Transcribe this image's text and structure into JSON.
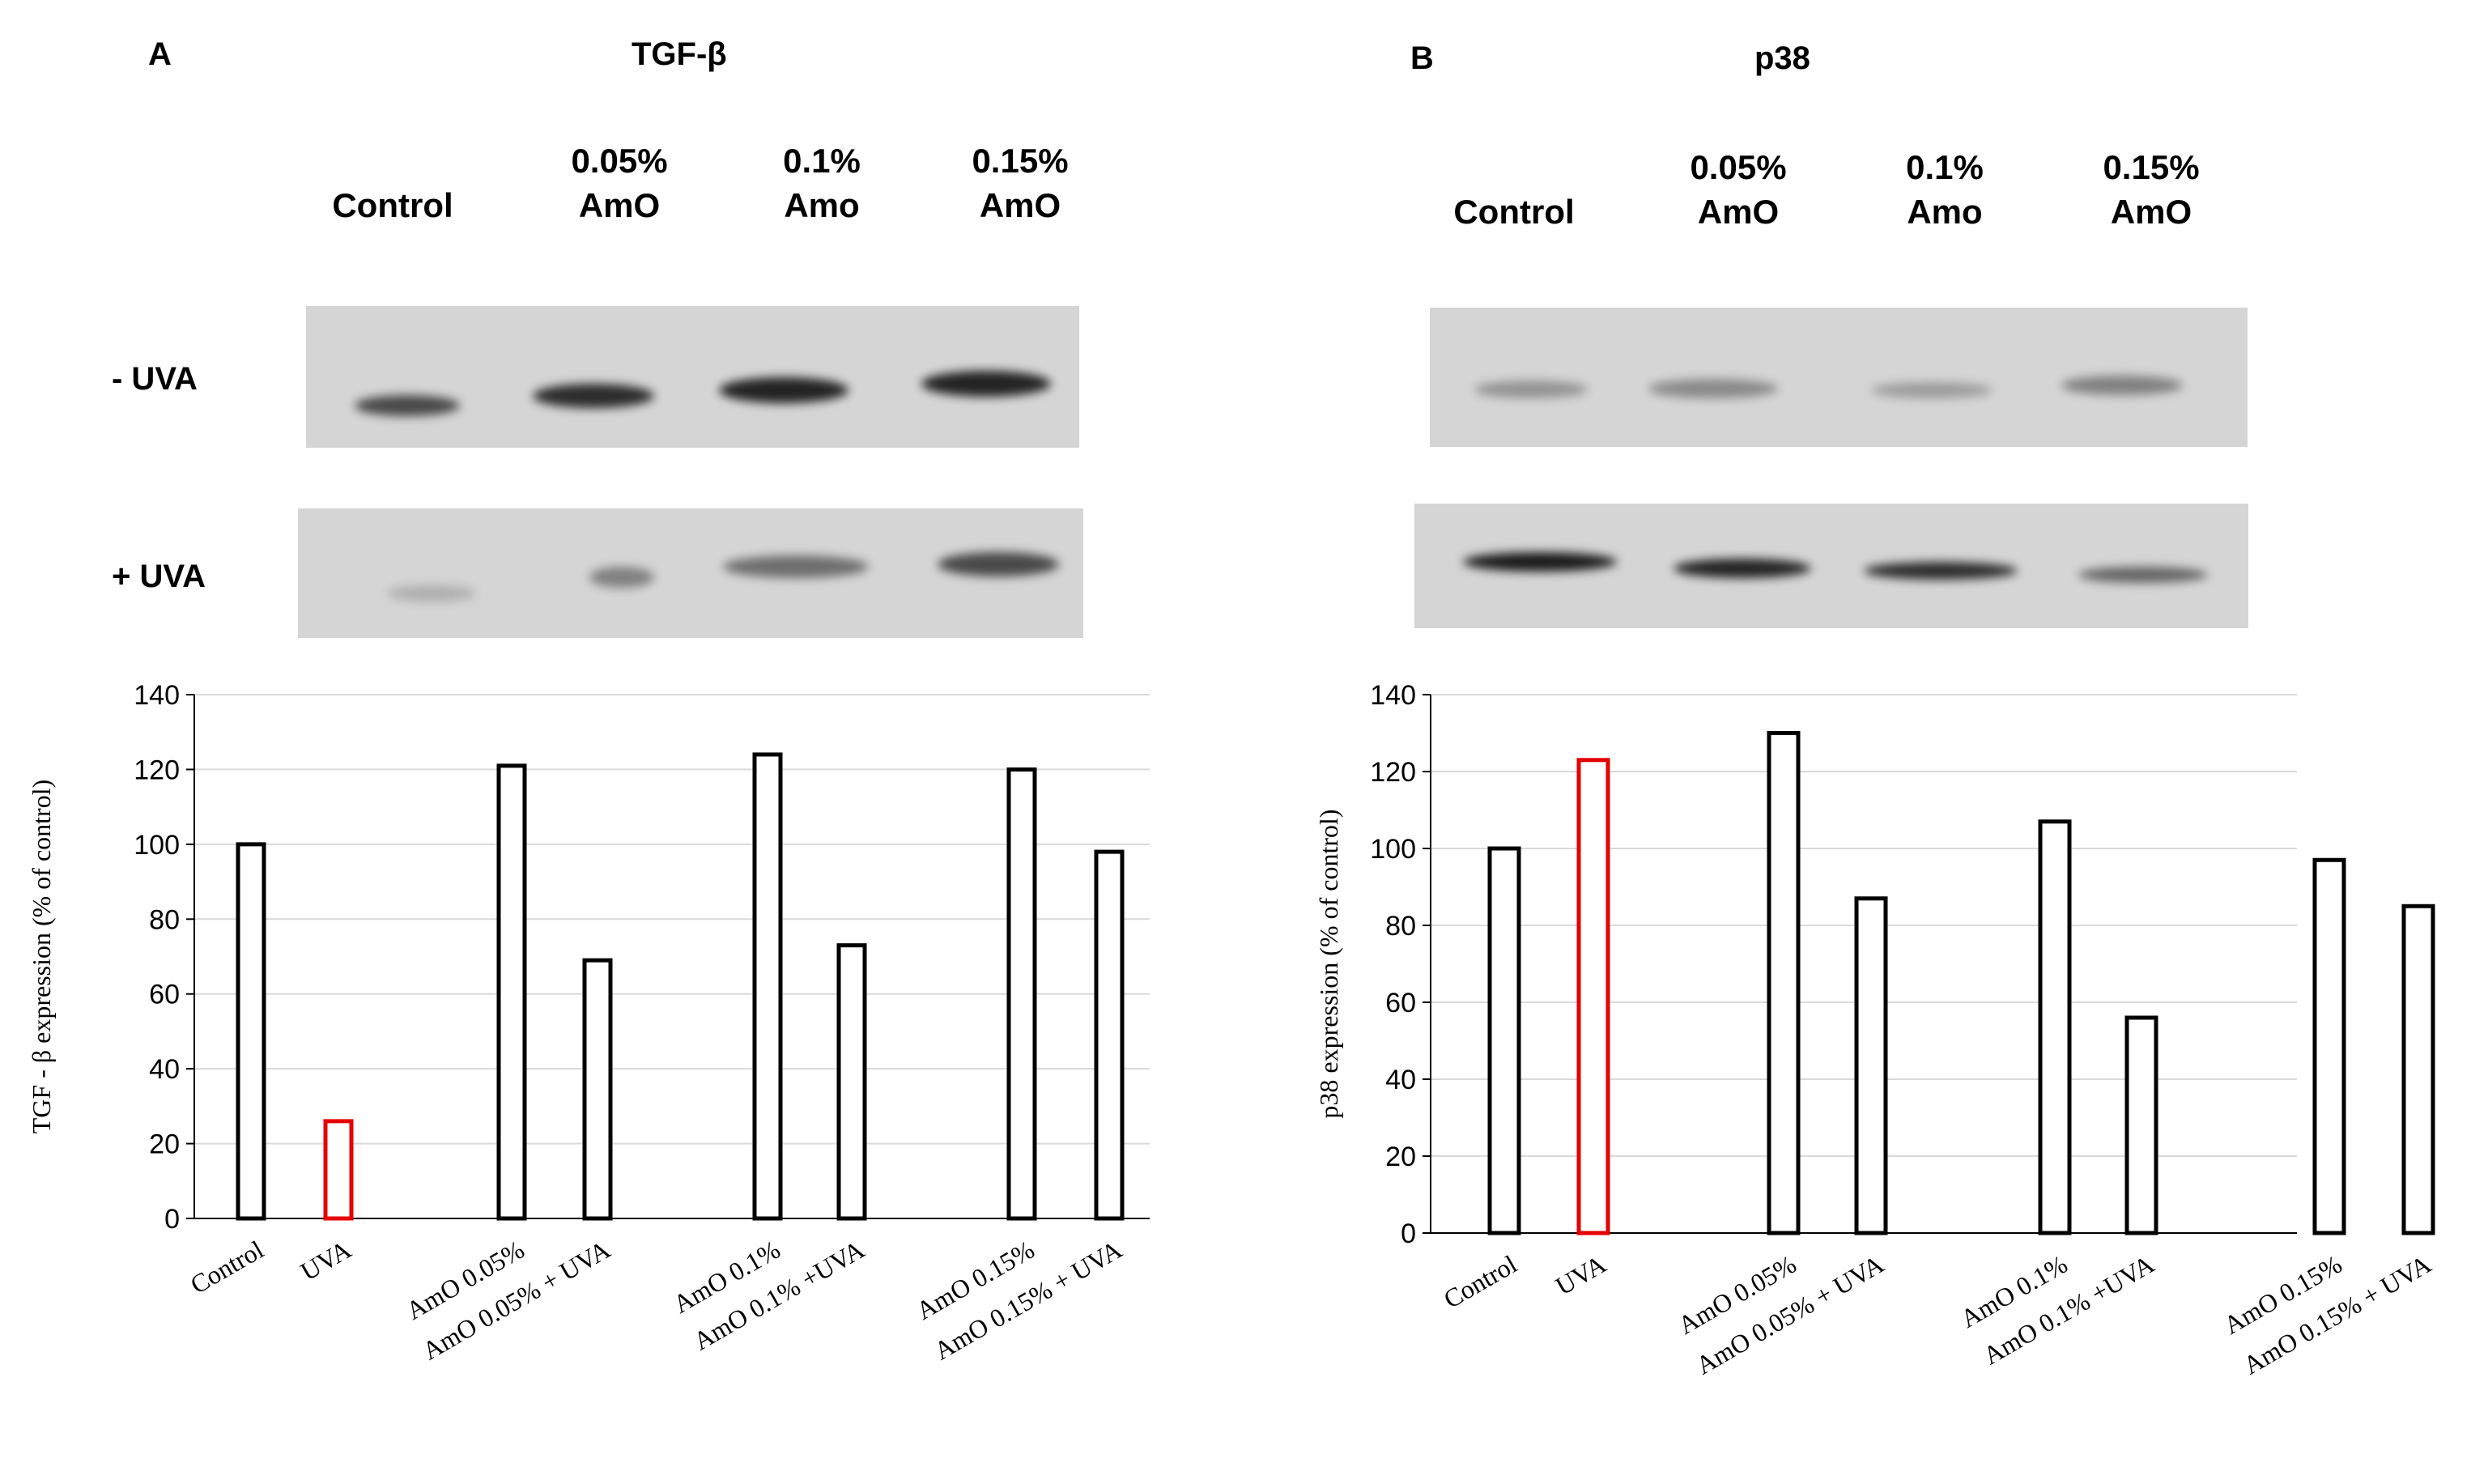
{
  "panel_a": {
    "label": "A",
    "title": "TGF-β",
    "lanes": [
      {
        "line1": "",
        "line2": "Control"
      },
      {
        "line1": "0.05%",
        "line2": "AmO"
      },
      {
        "line1": "0.1%",
        "line2": "Amo"
      },
      {
        "line1": "0.15%",
        "line2": "AmO"
      }
    ],
    "row_minus": "- UVA",
    "row_plus": "+ UVA"
  },
  "panel_b": {
    "label": "B",
    "title": "p38",
    "lanes": [
      {
        "line1": "",
        "line2": "Control"
      },
      {
        "line1": "0.05%",
        "line2": "AmO"
      },
      {
        "line1": "0.1%",
        "line2": "Amo"
      },
      {
        "line1": "0.15%",
        "line2": "AmO"
      }
    ]
  },
  "colors": {
    "bar_edge": "#000000",
    "uva_bar_edge": "#e60000",
    "grid": "#d9d9d9"
  },
  "chart_data": [
    {
      "type": "bar",
      "title": "",
      "ylabel": "TGF - β expression (% of control)",
      "xlabel": "",
      "ylim": [
        0,
        140
      ],
      "yticks": [
        0,
        20,
        40,
        60,
        80,
        100,
        120,
        140
      ],
      "grid": true,
      "categories": [
        "Control",
        "UVA",
        "AmO 0.05%",
        "AmO 0.05% + UVA",
        "AmO 0.1%",
        "AmO 0.1% +UVA",
        "AmO 0.15%",
        "AmO 0.15% + UVA"
      ],
      "values": [
        100,
        26,
        121,
        69,
        124,
        73,
        120,
        98
      ],
      "highlight": "UVA"
    },
    {
      "type": "bar",
      "title": "",
      "ylabel": "p38 expression (% of control)",
      "xlabel": "",
      "ylim": [
        0,
        140
      ],
      "yticks": [
        0,
        20,
        40,
        60,
        80,
        100,
        120,
        140
      ],
      "grid": true,
      "categories": [
        "Control",
        "UVA",
        "AmO 0.05%",
        "AmO 0.05% + UVA",
        "AmO 0.1%",
        "AmO 0.1% +UVA",
        "AmO 0.15%",
        "AmO 0.15% + UVA"
      ],
      "values": [
        100,
        123,
        130,
        87,
        107,
        56,
        97,
        85
      ],
      "highlight": "UVA"
    }
  ]
}
